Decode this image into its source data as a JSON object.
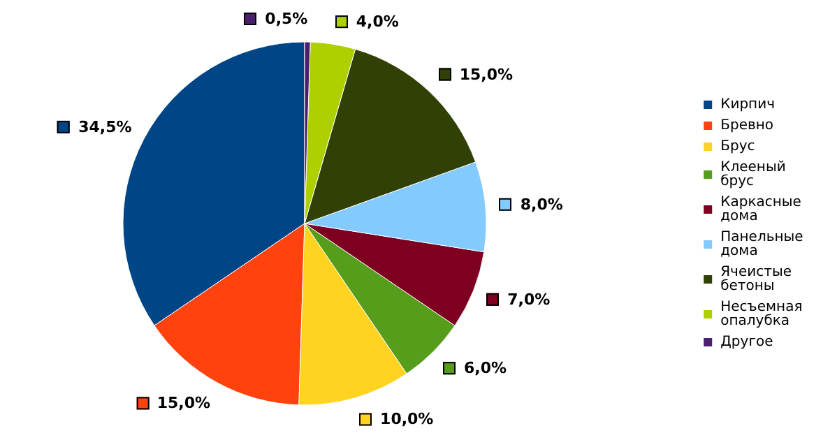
{
  "chart_data": {
    "type": "pie",
    "categories": [
      "Кирпич",
      "Бревно",
      "Брус",
      "Клееный брус",
      "Каркасные дома",
      "Панельные дома",
      "Ячеистые бетоны",
      "Несъемная опалубка",
      "Другое"
    ],
    "values": [
      34.5,
      15,
      10,
      6,
      7,
      8,
      15,
      4,
      0.5
    ],
    "colors": [
      "#004586",
      "#ff420e",
      "#ffd320",
      "#579d1c",
      "#7e0021",
      "#83caff",
      "#314004",
      "#aecf00",
      "#4b1f6f"
    ],
    "value_labels": [
      "34,5%",
      "15,0%",
      "10,0%",
      "6,0%",
      "7,0%",
      "8,0%",
      "15,0%",
      "4,0%",
      "0,5%"
    ],
    "legend": "right"
  }
}
